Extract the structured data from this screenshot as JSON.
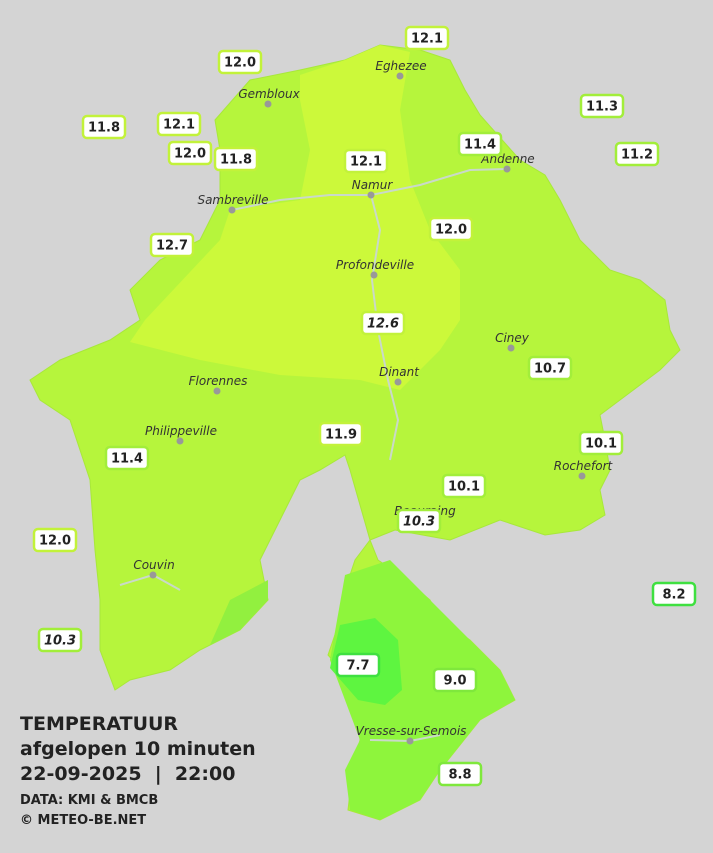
{
  "stations": [
    {
      "value": "12.1"
    },
    {
      "value": "12.0"
    },
    {
      "value": "11.3"
    },
    {
      "value": "11.8"
    },
    {
      "value": "12.1"
    },
    {
      "value": "11.4"
    },
    {
      "value": "11.2"
    },
    {
      "value": "12.0"
    },
    {
      "value": "11.8"
    },
    {
      "value": "12.1"
    },
    {
      "value": "12.7"
    },
    {
      "value": "12.0"
    },
    {
      "value": "12.6",
      "italic": true
    },
    {
      "value": "10.7"
    },
    {
      "value": "11.9"
    },
    {
      "value": "10.1"
    },
    {
      "value": "11.4"
    },
    {
      "value": "10.1"
    },
    {
      "value": "10.3",
      "italic": true
    },
    {
      "value": "12.0"
    },
    {
      "value": "8.2"
    },
    {
      "value": "10.3",
      "italic": true
    },
    {
      "value": "7.7"
    },
    {
      "value": "9.0"
    },
    {
      "value": "8.8"
    }
  ],
  "cities": [
    "Eghezee",
    "Gembloux",
    "Andenne",
    "Namur",
    "Sambreville",
    "Profondeville",
    "Ciney",
    "Dinant",
    "Florennes",
    "Philippeville",
    "Rochefort",
    "Beauraing",
    "Couvin",
    "Vresse-sur-Semois"
  ],
  "legend": {
    "title": "TEMPERATUUR",
    "subtitle": "afgelopen 10 minuten",
    "timestamp": "22-09-2025  |  22:00",
    "source": "DATA: KMI & BMCB",
    "credit": "© METEO-BE.NET"
  }
}
